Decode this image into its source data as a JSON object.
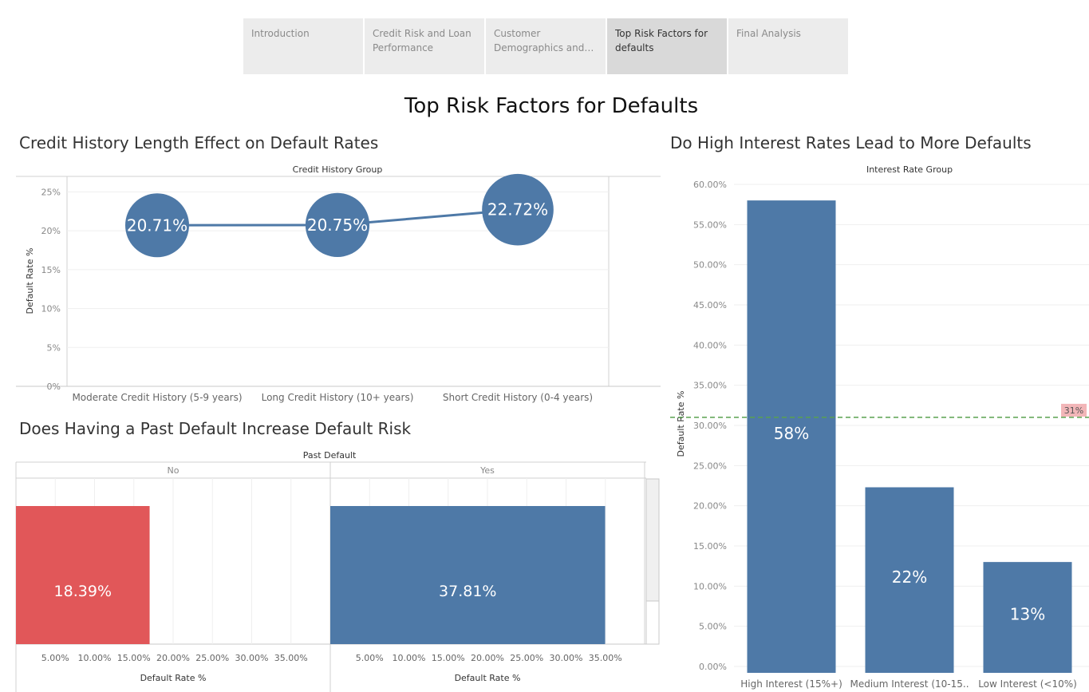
{
  "nav": {
    "tabs": [
      {
        "label": "Introduction",
        "active": false
      },
      {
        "label": "Credit Risk and Loan Performance",
        "active": false
      },
      {
        "label": "Customer Demographics and Ri..",
        "active": false
      },
      {
        "label": "Top Risk Factors for defaults",
        "active": true
      },
      {
        "label": "Final Analysis",
        "active": false
      }
    ]
  },
  "page": {
    "title": "Top Risk Factors for Defaults"
  },
  "colors": {
    "bar": "#4e79a7",
    "highlight": "#e15759",
    "reference": "#59a14f",
    "reference_label_bg": "#f2b6b8"
  },
  "sheets": {
    "credit_history_title": "Credit History Length Effect on Default Rates",
    "interest_title": "Do High Interest Rates Lead to More Defaults",
    "past_default_title": "Does Having a Past Default Increase Default Risk"
  },
  "chart_data": [
    {
      "id": "credit_history",
      "type": "line",
      "header": "Credit History Group",
      "ylabel": "Default Rate %",
      "ylim": [
        0,
        27
      ],
      "yticks": [
        "0%",
        "5%",
        "10%",
        "15%",
        "20%",
        "25%"
      ],
      "categories": [
        "Moderate Credit History (5-9 years)",
        "Long Credit History (10+ years)",
        "Short Credit History (0-4 years)"
      ],
      "values": [
        20.71,
        20.75,
        22.72
      ],
      "labels": [
        "20.71%",
        "20.75%",
        "22.72%"
      ],
      "grid": true
    },
    {
      "id": "interest_rate",
      "type": "bar",
      "header": "Interest Rate Group",
      "ylabel": "Default Rate %",
      "ylim": [
        0,
        61
      ],
      "yticks": [
        "0.00%",
        "5.00%",
        "10.00%",
        "15.00%",
        "20.00%",
        "25.00%",
        "30.00%",
        "35.00%",
        "40.00%",
        "45.00%",
        "50.00%",
        "55.00%",
        "60.00%"
      ],
      "categories": [
        "High Interest (15%+)",
        "Medium Interest (10-15..",
        "Low Interest (<10%)"
      ],
      "values": [
        58,
        22.3,
        13
      ],
      "labels": [
        "58%",
        "22%",
        "13%"
      ],
      "reference_line": {
        "value": 31,
        "label": "31%"
      },
      "grid": true
    },
    {
      "id": "past_default",
      "type": "bar",
      "orientation": "horizontal",
      "header": "Past Default",
      "xlabel": "Default Rate %",
      "xlim": [
        0,
        40
      ],
      "xticks": [
        "5.00%",
        "10.00%",
        "15.00%",
        "20.00%",
        "25.00%",
        "30.00%",
        "35.00%"
      ],
      "categories": [
        "No",
        "Yes"
      ],
      "values": [
        18.39,
        37.81
      ],
      "labels": [
        "18.39%",
        "37.81%"
      ]
    }
  ]
}
